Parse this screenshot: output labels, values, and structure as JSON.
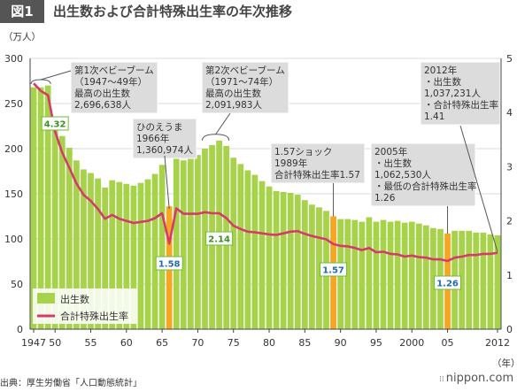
{
  "header": {
    "badge": "図1",
    "title": "出生数および合計特殊出生率の年次推移"
  },
  "left_unit": "（万人）",
  "x_unit": "（年）",
  "source": "出典：厚生労働省「人口動態統計」",
  "logo": "nippon.com",
  "colors": {
    "bar": "#a7d34b",
    "bar_highlight": "#f5a623",
    "line": "#d63a6a",
    "label_border": "#72b83a",
    "label_text_green": "#3a8f1e",
    "label_text_blue": "#1f6cb0"
  },
  "legend": {
    "bars": "出生数",
    "line": "合計特殊出生率"
  },
  "annotations": {
    "baby_boom_1": [
      "第1次ベビーブーム",
      "（1947〜49年）",
      "最高の出生数",
      "2,696,638人"
    ],
    "hinoeuma": [
      "ひのえうま",
      "1966年",
      "1,360,974人"
    ],
    "baby_boom_2": [
      "第2次ベビーブーム",
      "（1971〜74年）",
      "最高の出生数",
      "2,091,983人"
    ],
    "shock_157": [
      "1.57ショック",
      "1989年",
      "合計特殊出生率1.57"
    ],
    "y2005": [
      "2005年",
      "・出生数",
      "1,062,530人",
      "・最低の合計特殊出生率",
      "1.26"
    ],
    "y2012": [
      "2012年",
      "・出生数",
      "1,037,231人",
      "・合計特殊出生率",
      "1.41"
    ]
  },
  "rate_labels": [
    "4.32",
    "1.58",
    "2.14",
    "1.57",
    "1.26"
  ],
  "chart_data": {
    "type": "bar",
    "title": "出生数および合計特殊出生率の年次推移",
    "xlabel": "（年）",
    "ylabel": "（万人）",
    "ylim": [
      0,
      300
    ],
    "y2lim": [
      0,
      5
    ],
    "grid": true,
    "legend_position": "bottom-left",
    "x_tick_labels": [
      "1947",
      "50",
      "55",
      "60",
      "65",
      "70",
      "75",
      "80",
      "85",
      "90",
      "95",
      "2000",
      "05",
      "2012"
    ],
    "y_ticks": [
      0,
      50,
      100,
      150,
      200,
      250,
      300
    ],
    "y2_ticks": [
      0,
      1,
      2,
      3,
      4,
      5
    ],
    "highlight_years": [
      1966,
      1989,
      2005
    ],
    "x": [
      1947,
      1948,
      1949,
      1950,
      1951,
      1952,
      1953,
      1954,
      1955,
      1956,
      1957,
      1958,
      1959,
      1960,
      1961,
      1962,
      1963,
      1964,
      1965,
      1966,
      1967,
      1968,
      1969,
      1970,
      1971,
      1972,
      1973,
      1974,
      1975,
      1976,
      1977,
      1978,
      1979,
      1980,
      1981,
      1982,
      1983,
      1984,
      1985,
      1986,
      1987,
      1988,
      1989,
      1990,
      1991,
      1992,
      1993,
      1994,
      1995,
      1996,
      1997,
      1998,
      1999,
      2000,
      2001,
      2002,
      2003,
      2004,
      2005,
      2006,
      2007,
      2008,
      2009,
      2010,
      2011,
      2012
    ],
    "series": [
      {
        "name": "出生数",
        "axis": "left",
        "values": [
          268,
          268,
          270,
          234,
          214,
          201,
          187,
          177,
          173,
          167,
          157,
          165,
          163,
          161,
          159,
          162,
          166,
          172,
          182,
          136,
          194,
          187,
          189,
          193,
          200,
          204,
          209,
          203,
          190,
          183,
          176,
          171,
          164,
          158,
          153,
          152,
          151,
          149,
          143,
          138,
          135,
          131,
          125,
          122,
          122,
          121,
          119,
          124,
          119,
          121,
          119,
          120,
          118,
          119,
          117,
          115,
          112,
          111,
          106,
          109,
          109,
          109,
          107,
          107,
          105,
          104
        ]
      },
      {
        "name": "合計特殊出生率",
        "axis": "right",
        "values": [
          4.54,
          4.4,
          4.32,
          3.65,
          3.26,
          2.98,
          2.69,
          2.48,
          2.37,
          2.22,
          2.04,
          2.11,
          2.04,
          2.0,
          1.96,
          1.98,
          2.0,
          2.05,
          2.14,
          1.58,
          2.23,
          2.13,
          2.13,
          2.13,
          2.16,
          2.14,
          2.14,
          2.05,
          1.91,
          1.85,
          1.8,
          1.79,
          1.77,
          1.75,
          1.74,
          1.77,
          1.8,
          1.81,
          1.76,
          1.72,
          1.69,
          1.66,
          1.57,
          1.54,
          1.53,
          1.5,
          1.46,
          1.5,
          1.42,
          1.43,
          1.39,
          1.38,
          1.34,
          1.36,
          1.33,
          1.32,
          1.29,
          1.29,
          1.26,
          1.32,
          1.34,
          1.37,
          1.37,
          1.39,
          1.39,
          1.41
        ]
      }
    ]
  }
}
